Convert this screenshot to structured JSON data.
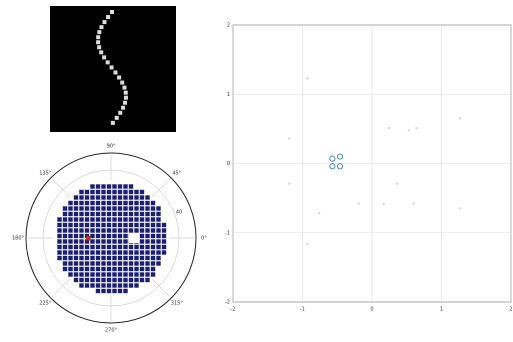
{
  "chart_data": [
    {
      "type": "polar",
      "thetaticks": [
        {
          "value": 0,
          "label": "0°"
        },
        {
          "value": 45,
          "label": "45°"
        },
        {
          "value": 90,
          "label": "90°"
        },
        {
          "value": 135,
          "label": "135°"
        },
        {
          "value": 180,
          "label": "180°"
        },
        {
          "value": 225,
          "label": "225°"
        },
        {
          "value": 270,
          "label": "270°"
        },
        {
          "value": 315,
          "label": "315°"
        }
      ],
      "rlim": [
        0,
        50
      ],
      "rticks": [
        40
      ],
      "grid": true
    },
    {
      "type": "scatter",
      "xlim": [
        -2,
        2
      ],
      "ylim": [
        -2,
        2
      ],
      "xticks": [
        -2,
        -1,
        0,
        1,
        2
      ],
      "yticks": [
        -2,
        -1,
        0,
        1,
        2
      ],
      "grid": true,
      "series": [
        {
          "color": "#4a86c8",
          "x": [
            -0.57,
            -0.57,
            -0.46,
            -0.46
          ],
          "y": [
            0.07,
            -0.04,
            0.1,
            -0.04
          ]
        },
        {
          "color": "#c9d9ee",
          "x": [
            -0.93,
            -1.19,
            -1.19,
            -0.93,
            -0.76,
            0.24,
            0.53,
            0.64,
            1.27,
            0.36,
            0.17,
            0.6,
            1.27,
            -0.19
          ],
          "y": [
            1.23,
            0.36,
            -0.29,
            -1.16,
            -0.72,
            0.51,
            0.48,
            0.51,
            0.65,
            -0.29,
            -0.58,
            -0.58,
            -0.65,
            -0.58
          ]
        }
      ]
    }
  ]
}
